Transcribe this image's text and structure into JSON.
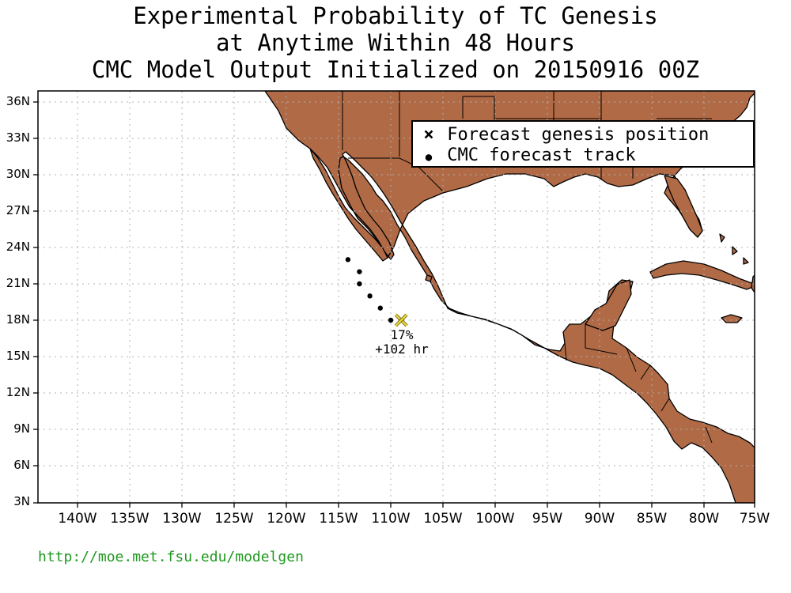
{
  "title": {
    "line1": "Experimental Probability of TC Genesis",
    "line2": "at Anytime Within 48 Hours",
    "line3": "CMC Model Output Initialized on 20150916 00Z"
  },
  "axes": {
    "lat_labels": [
      "36N",
      "33N",
      "30N",
      "27N",
      "24N",
      "21N",
      "18N",
      "15N",
      "12N",
      "9N",
      "6N",
      "3N"
    ],
    "lon_labels": [
      "140W",
      "135W",
      "130W",
      "125W",
      "120W",
      "115W",
      "110W",
      "105W",
      "100W",
      "95W",
      "90W",
      "85W",
      "80W",
      "75W"
    ]
  },
  "legend": {
    "genesis_symbol": "×",
    "genesis_label": "Forecast genesis position",
    "track_symbol": "●",
    "track_label": "CMC forecast track"
  },
  "forecast": {
    "track_points": [
      {
        "lon": -114.1,
        "lat": 23.0
      },
      {
        "lon": -113.0,
        "lat": 22.0
      },
      {
        "lon": -113.0,
        "lat": 21.0
      },
      {
        "lon": -112.0,
        "lat": 20.0
      },
      {
        "lon": -111.0,
        "lat": 19.0
      },
      {
        "lon": -110.0,
        "lat": 18.0
      }
    ],
    "genesis": {
      "lon": -109.0,
      "lat": 18.0
    },
    "probability": "17%",
    "lead_time": "+102 hr"
  },
  "colors": {
    "land": "#b06a46",
    "genesis_marker": "#e8d840",
    "grid": "#b0b0b0",
    "url": "#1f9a1f"
  },
  "footer": {
    "url": "http://moe.met.fsu.edu/modelgen"
  }
}
